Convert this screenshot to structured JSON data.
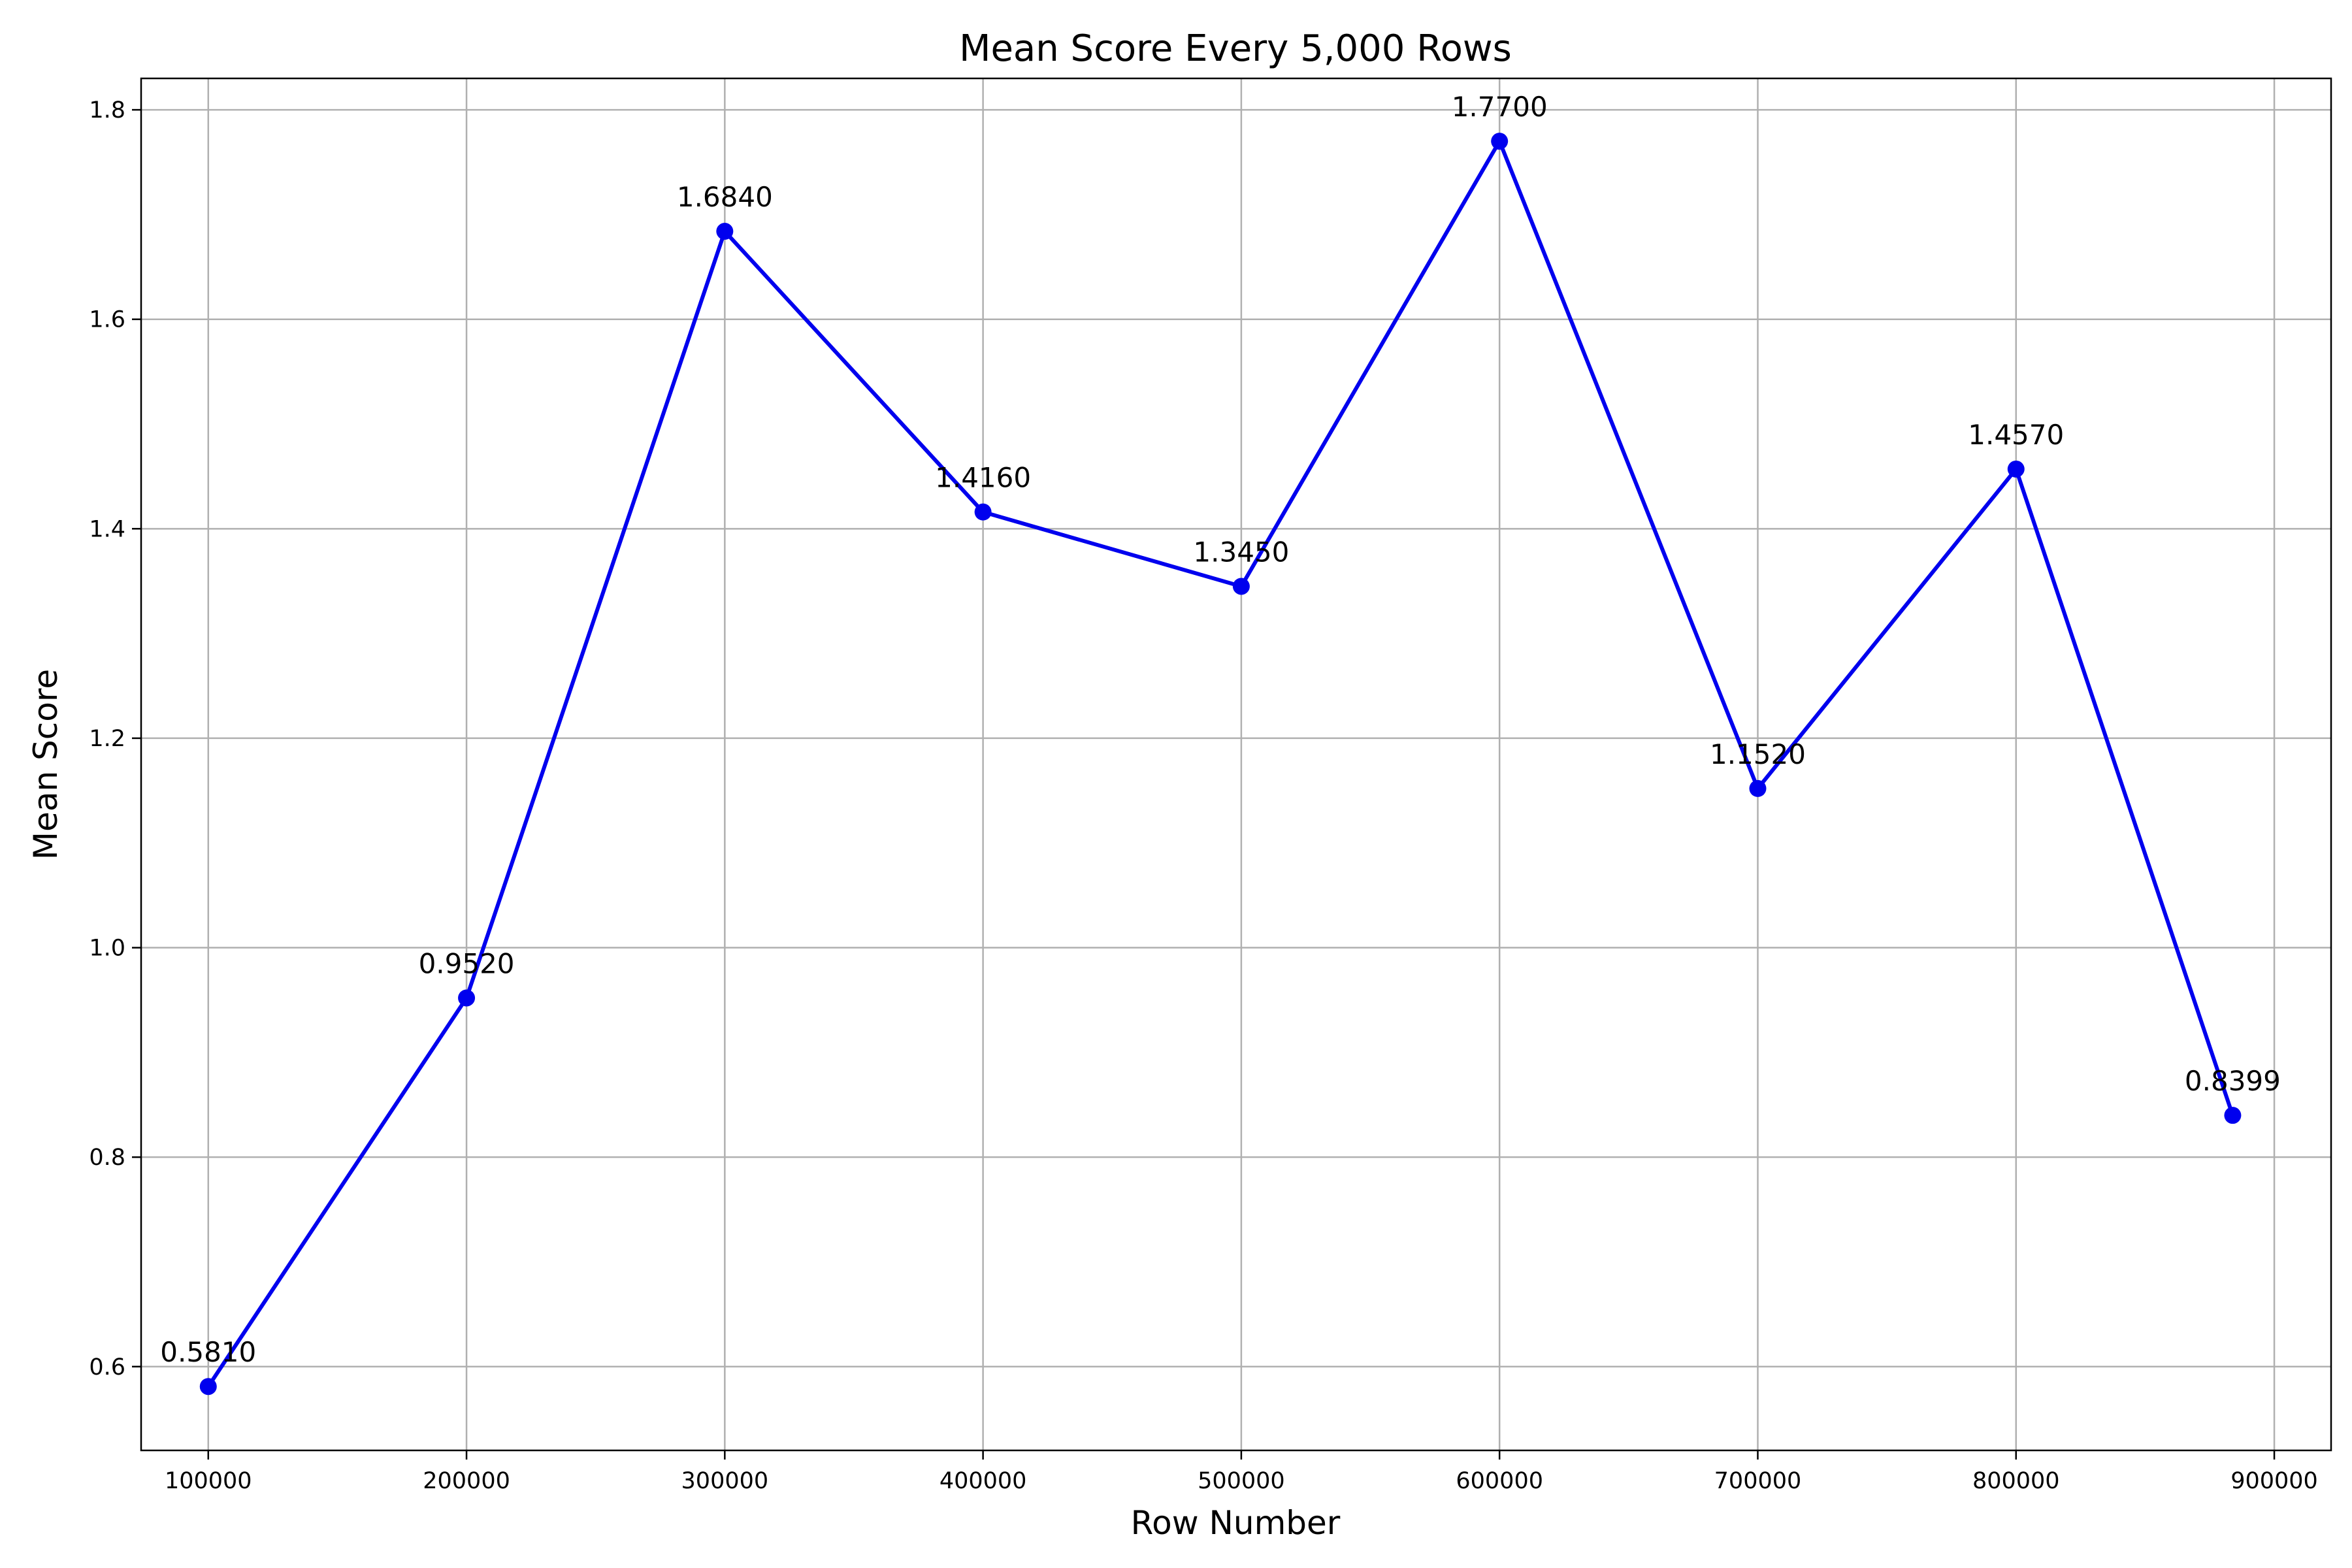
{
  "chart_data": {
    "type": "line",
    "title": "Mean Score Every 5,000 Rows",
    "xlabel": "Row Number",
    "ylabel": "Mean Score",
    "xlim": [
      74000,
      922000
    ],
    "ylim": [
      0.52,
      1.83
    ],
    "xticks": [
      100000,
      200000,
      300000,
      400000,
      500000,
      600000,
      700000,
      800000,
      900000
    ],
    "xtick_labels": [
      "100000",
      "200000",
      "300000",
      "400000",
      "500000",
      "600000",
      "700000",
      "800000",
      "900000"
    ],
    "yticks": [
      0.6,
      0.8,
      1.0,
      1.2,
      1.4,
      1.6,
      1.8
    ],
    "ytick_labels": [
      "0.6",
      "0.8",
      "1.0",
      "1.2",
      "1.4",
      "1.6",
      "1.8"
    ],
    "grid": true,
    "series": [
      {
        "color": "#0000ee",
        "marker": "circle",
        "x": [
          100000,
          200000,
          300000,
          400000,
          500000,
          600000,
          700000,
          800000,
          883900
        ],
        "y": [
          0.581,
          0.952,
          1.684,
          1.416,
          1.345,
          1.77,
          1.152,
          1.457,
          0.8399
        ],
        "labels": [
          "0.5810",
          "0.9520",
          "1.6840",
          "1.4160",
          "1.3450",
          "1.7700",
          "1.1520",
          "1.4570",
          "0.8399"
        ]
      }
    ]
  }
}
